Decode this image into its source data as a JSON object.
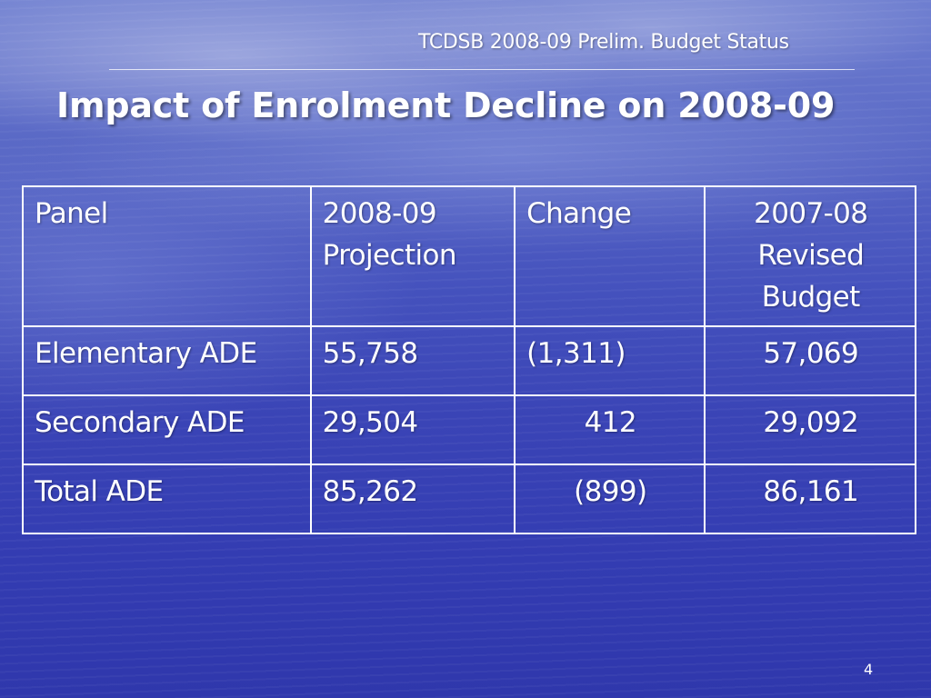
{
  "header": {
    "text": "TCDSB 2008-09 Prelim. Budget Status"
  },
  "title": "Impact of Enrolment Decline on 2008-09",
  "table": {
    "columns": [
      {
        "lines": [
          "Panel"
        ]
      },
      {
        "lines": [
          "2008-09",
          "Projection"
        ]
      },
      {
        "lines": [
          "Change"
        ]
      },
      {
        "lines": [
          "2007-08",
          "Revised",
          "Budget"
        ]
      }
    ],
    "rows": [
      {
        "panel": "Elementary ADE",
        "projection": "55,758",
        "change": "(1,311)",
        "budget": "57,069"
      },
      {
        "panel": "Secondary ADE",
        "projection": "29,504",
        "change": "412",
        "budget": "29,092"
      },
      {
        "panel": "Total ADE",
        "projection": "85,262",
        "change": "(899)",
        "budget": "86,161"
      }
    ]
  },
  "footer": {
    "page_number": "4"
  }
}
